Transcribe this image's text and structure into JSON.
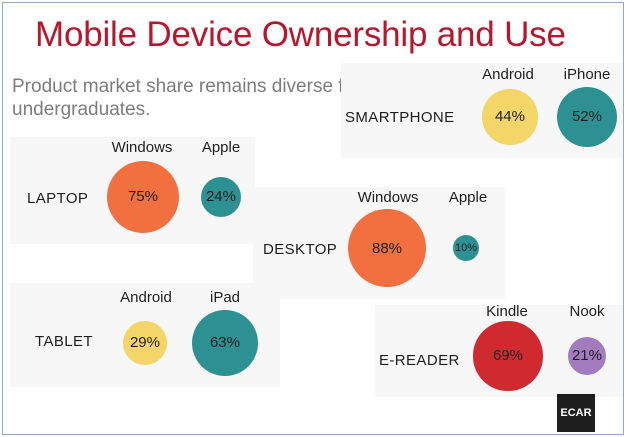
{
  "title": "Mobile Device Ownership and Use",
  "subtitle": "Product market share remains diverse for undergraduates.",
  "badge": "ECAR",
  "colors": {
    "title": "#b5172c",
    "windows": "#f26f3f",
    "apple": "#2d9193",
    "android": "#f4d668",
    "kindle": "#cf2a2f",
    "nook": "#a37bbf"
  },
  "chart_data": {
    "type": "bubble",
    "unit": "%",
    "groups": [
      {
        "device": "SMARTPHONE",
        "items": [
          {
            "brand": "Android",
            "value": 44,
            "label": "44%"
          },
          {
            "brand": "iPhone",
            "value": 52,
            "label": "52%"
          }
        ]
      },
      {
        "device": "LAPTOP",
        "items": [
          {
            "brand": "Windows",
            "value": 75,
            "label": "75%"
          },
          {
            "brand": "Apple",
            "value": 24,
            "label": "24%"
          }
        ]
      },
      {
        "device": "DESKTOP",
        "items": [
          {
            "brand": "Windows",
            "value": 88,
            "label": "88%"
          },
          {
            "brand": "Apple",
            "value": 10,
            "label": "10%"
          }
        ]
      },
      {
        "device": "TABLET",
        "items": [
          {
            "brand": "Android",
            "value": 29,
            "label": "29%"
          },
          {
            "brand": "iPad",
            "value": 63,
            "label": "63%"
          }
        ]
      },
      {
        "device": "E-READER",
        "items": [
          {
            "brand": "Kindle",
            "value": 69,
            "label": "69%"
          },
          {
            "brand": "Nook",
            "value": 21,
            "label": "21%"
          }
        ]
      }
    ]
  }
}
